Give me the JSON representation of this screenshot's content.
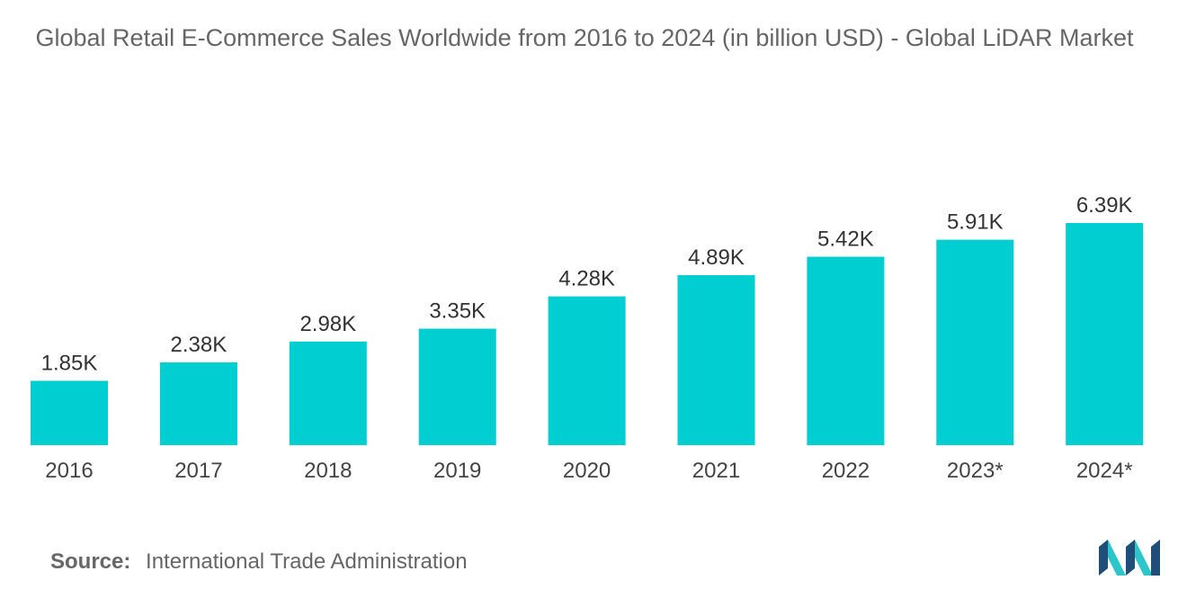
{
  "title": "Global Retail E-Commerce Sales Worldwide from 2016 to 2024 (in billion USD) - Global LiDAR Market",
  "source": {
    "label": "Source:",
    "text": "International Trade Administration"
  },
  "colors": {
    "bar": "#00ced1",
    "logo_dark": "#1f4e79",
    "logo_light": "#2cc5c9"
  },
  "logo_icon": "mordor-intelligence-logo",
  "chart_data": {
    "type": "bar",
    "title": "Global Retail E-Commerce Sales Worldwide from 2016 to 2024 (in billion USD) - Global LiDAR Market",
    "xlabel": "",
    "ylabel": "",
    "categories": [
      "2016",
      "2017",
      "2018",
      "2019",
      "2020",
      "2021",
      "2022",
      "2023*",
      "2024*"
    ],
    "values": [
      1850,
      2380,
      2980,
      3350,
      4280,
      4890,
      5420,
      5910,
      6390
    ],
    "data_labels": [
      "1.85K",
      "2.38K",
      "2.98K",
      "3.35K",
      "4.28K",
      "4.89K",
      "5.42K",
      "5.91K",
      "6.39K"
    ],
    "ylim": [
      0,
      6390
    ],
    "grid": false,
    "legend": "none"
  }
}
